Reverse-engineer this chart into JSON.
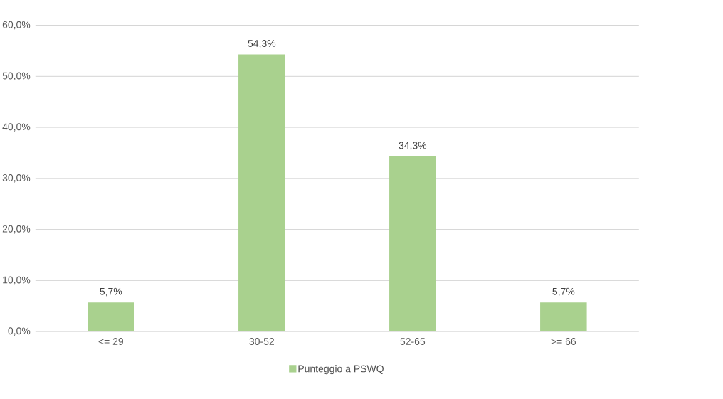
{
  "chart_data": {
    "type": "bar",
    "categories": [
      "<= 29",
      "30-52",
      "52-65",
      ">= 66"
    ],
    "series": [
      {
        "name": "Punteggio a PSWQ",
        "color": "#a9d18e",
        "values": [
          5.7,
          54.3,
          34.3,
          5.7
        ],
        "value_labels": [
          "5,7%",
          "54,3%",
          "34,3%",
          "5,7%"
        ]
      }
    ],
    "ylim": [
      0,
      60
    ],
    "yticks": [
      {
        "value": 0,
        "label": "0,0%"
      },
      {
        "value": 10,
        "label": "10,0%"
      },
      {
        "value": 20,
        "label": "20,0%"
      },
      {
        "value": 30,
        "label": "30,0%"
      },
      {
        "value": 40,
        "label": "40,0%"
      },
      {
        "value": 50,
        "label": "50,0%"
      },
      {
        "value": 60,
        "label": "60,0%"
      }
    ],
    "grid": "y",
    "legend": "bottom"
  }
}
